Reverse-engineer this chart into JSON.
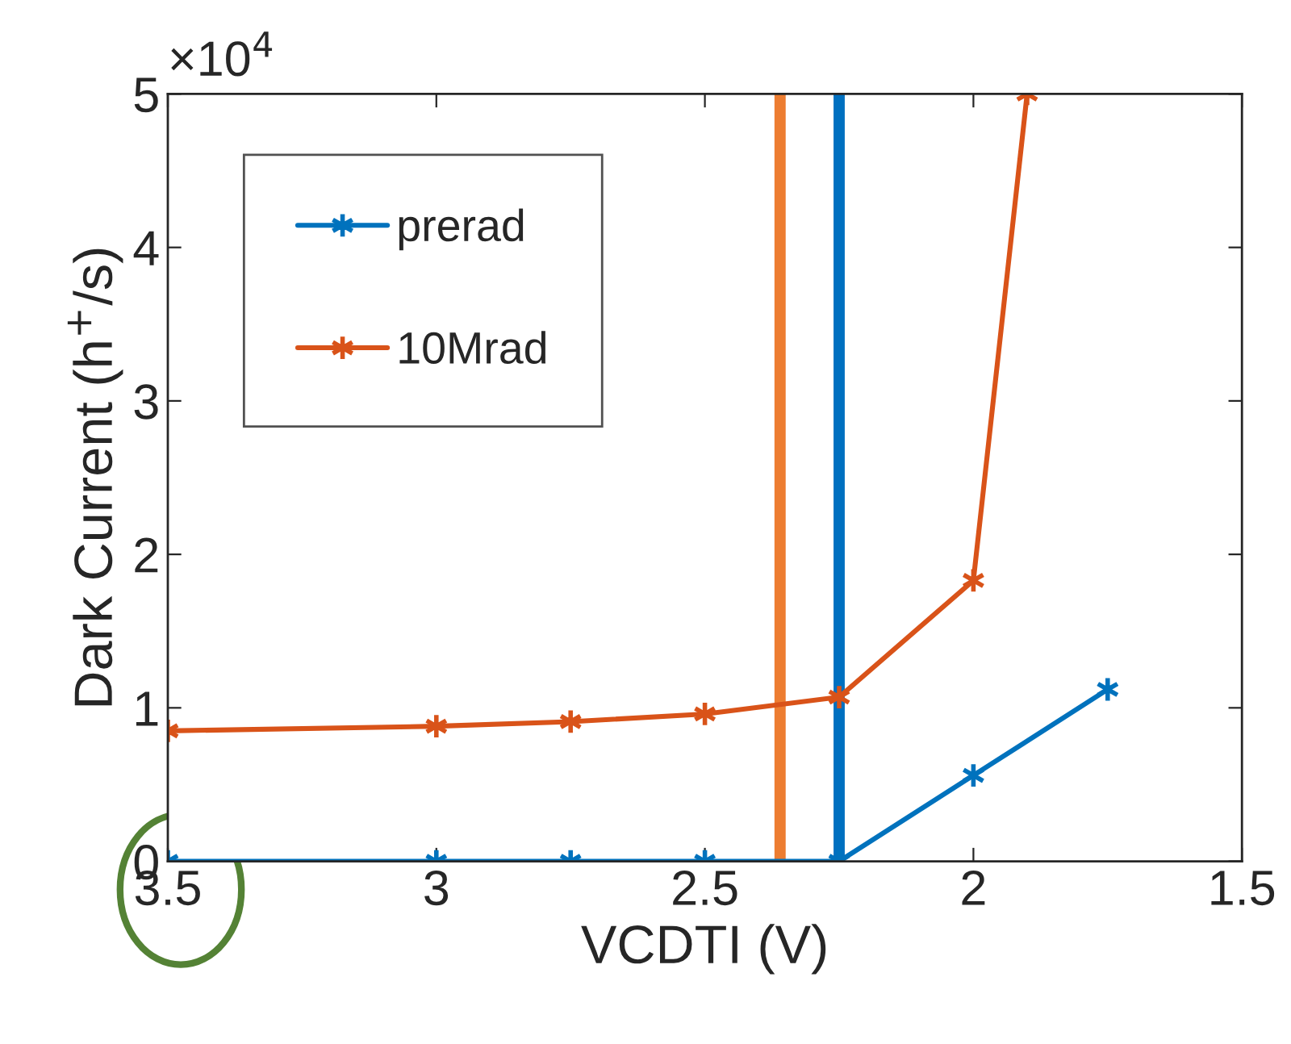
{
  "chart_data": {
    "type": "line",
    "xlabel": "VCDTI (V)",
    "ylabel": "Dark Current (h$^{+}$/s)",
    "xlim": [
      3.5,
      1.5
    ],
    "xticks": [
      3.5,
      3,
      2.5,
      2,
      1.5
    ],
    "ylim": [
      0,
      5
    ],
    "yticks": [
      0,
      1,
      2,
      3,
      4,
      5
    ],
    "annotations": [
      "×10$^{4}$"
    ],
    "series": [
      {
        "name": "prerad",
        "color": "#0072bd",
        "x": [
          3.5,
          3,
          2.75,
          2.5,
          2.25,
          2,
          1.75
        ],
        "values": [
          0,
          0,
          0,
          0,
          0,
          0.56,
          1.12
        ]
      },
      {
        "name": "10Mrad",
        "color": "#d95319",
        "x": [
          3.5,
          3,
          2.75,
          2.5,
          2.25,
          2,
          1.9
        ],
        "values": [
          0.85,
          0.88,
          0.91,
          0.96,
          1.07,
          1.83,
          5
        ]
      }
    ],
    "ref_lines": [
      {
        "axis": "x",
        "value": 2.36,
        "color": "#ed7d31"
      },
      {
        "axis": "x",
        "value": 2.25,
        "color": "#0070c0"
      }
    ],
    "marker": "cross",
    "line_style": "solid",
    "legend": "top left",
    "grid": false
  }
}
